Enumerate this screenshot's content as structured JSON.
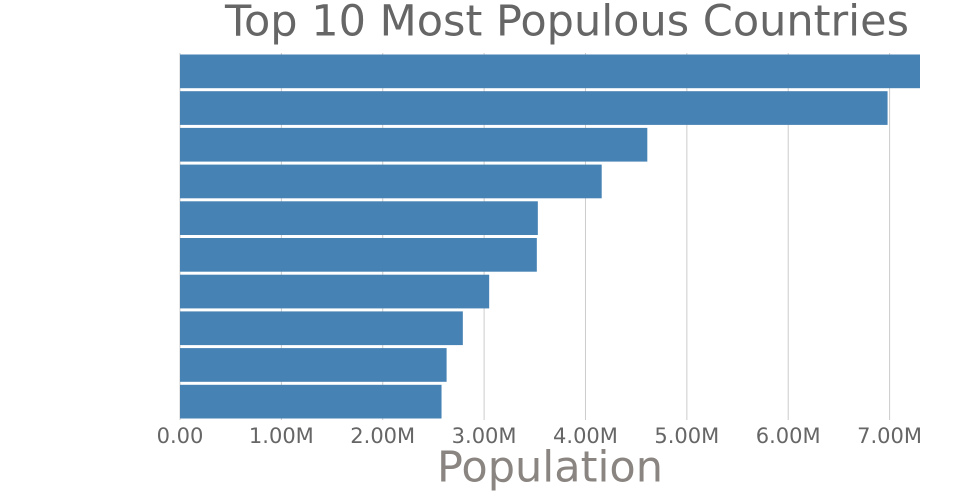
{
  "chart_data": {
    "type": "hbar",
    "title": "Top 10 Most Populous Countries",
    "x_label": "Population",
    "categories": [
      null,
      null,
      null,
      null,
      null,
      null,
      null,
      null,
      null,
      null
    ],
    "values": [
      7300000,
      6980000,
      4610000,
      4160000,
      3530000,
      3520000,
      3050000,
      2790000,
      2630000,
      2580000
    ],
    "color": "#4682b4",
    "xlim": [
      0,
      7300000
    ],
    "xticks": [
      {
        "value": 0,
        "label": "0.00"
      },
      {
        "value": 1000000,
        "label": "1.00M"
      },
      {
        "value": 2000000,
        "label": "2.00M"
      },
      {
        "value": 3000000,
        "label": "3.00M"
      },
      {
        "value": 4000000,
        "label": "4.00M"
      },
      {
        "value": 5000000,
        "label": "5.00M"
      },
      {
        "value": 6000000,
        "label": "6.00M"
      },
      {
        "value": 7000000,
        "label": "7.00M"
      }
    ],
    "grid": true
  }
}
